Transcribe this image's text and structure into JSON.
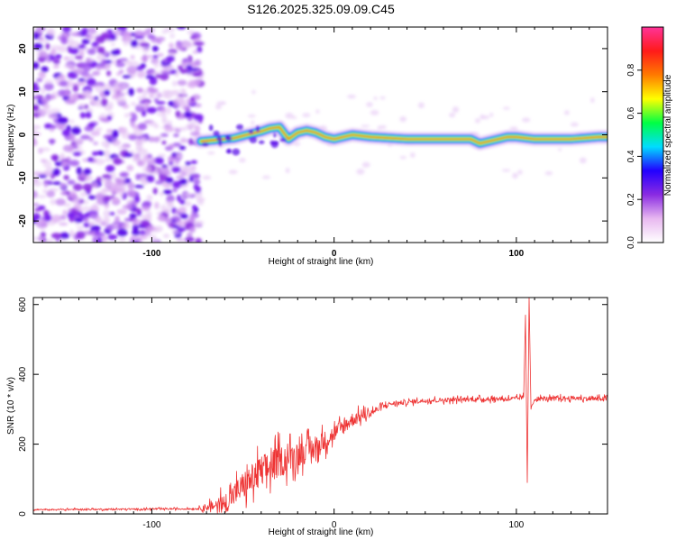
{
  "title": "S126.2025.325.09.09.C45",
  "colorbar": {
    "label": "Normalized spectral amplitude",
    "ticks": [
      "0.0",
      "0.2",
      "0.4",
      "0.6",
      "0.8"
    ],
    "tick_values": [
      0.0,
      0.2,
      0.4,
      0.6,
      0.8
    ],
    "range": [
      0,
      1
    ],
    "stops": [
      "#ffffff",
      "#e8b8f0",
      "#8a2be2",
      "#2200ff",
      "#00ddff",
      "#00ff44",
      "#ffff00",
      "#ff7a00",
      "#ff1a1a",
      "#ff3399"
    ]
  },
  "colors": {
    "snr_line": "#ee3333",
    "ridge_core": "#ff3322",
    "ridge_mid": "#22ff44",
    "ridge_outer": "#1144ff"
  },
  "chart_data": [
    {
      "type": "heatmap",
      "title": "S126.2025.325.09.09.C45",
      "xlabel": "Height of straight line (km)",
      "ylabel": "Frequency (Hz)",
      "xlim": [
        -165,
        150
      ],
      "ylim": [
        -25,
        25
      ],
      "xticks": [
        -100,
        0,
        100
      ],
      "xtick_labels": [
        "-100",
        "0",
        "100"
      ],
      "yticks": [
        20,
        10,
        0,
        -10,
        -20
      ],
      "ytick_labels": [
        "20",
        "10",
        "0",
        "-10",
        "-20"
      ],
      "description_values": {
        "noise_region_km": [
          -165,
          -73
        ],
        "ridge_frequency_hz": [
          [
            -73,
            -1.5
          ],
          [
            -65,
            -1.2
          ],
          [
            -55,
            -0.8
          ],
          [
            -48,
            0.0
          ],
          [
            -40,
            0.8
          ],
          [
            -35,
            1.5
          ],
          [
            -30,
            1.8
          ],
          [
            -25,
            -1.0
          ],
          [
            -20,
            0.5
          ],
          [
            -15,
            1.0
          ],
          [
            -10,
            0.5
          ],
          [
            -5,
            -0.5
          ],
          [
            0,
            -1.0
          ],
          [
            10,
            0.0
          ],
          [
            20,
            -0.5
          ],
          [
            40,
            -1.0
          ],
          [
            60,
            -1.0
          ],
          [
            75,
            -1.0
          ],
          [
            80,
            -2.0
          ],
          [
            85,
            -1.5
          ],
          [
            95,
            -0.5
          ],
          [
            100,
            -0.5
          ],
          [
            110,
            -1.0
          ],
          [
            130,
            -1.0
          ],
          [
            145,
            -0.5
          ],
          [
            150,
            -0.5
          ]
        ]
      }
    },
    {
      "type": "line",
      "xlabel": "Height of straight line (km)",
      "ylabel": "SNR (10 * v/v)",
      "xlim": [
        -165,
        150
      ],
      "ylim": [
        0,
        620
      ],
      "xticks": [
        -100,
        0,
        100
      ],
      "xtick_labels": [
        "-100",
        "0",
        "100"
      ],
      "yticks": [
        0,
        200,
        400,
        600
      ],
      "ytick_labels": [
        "0",
        "200",
        "400",
        "600"
      ],
      "series": [
        {
          "name": "SNR",
          "x": [
            -165,
            -140,
            -100,
            -75,
            -60,
            -50,
            -40,
            -30,
            -20,
            -10,
            0,
            10,
            20,
            30,
            50,
            70,
            90,
            100,
            104,
            105,
            106,
            107,
            108,
            110,
            120,
            130,
            140,
            150
          ],
          "values": [
            12,
            13,
            14,
            15,
            30,
            80,
            120,
            150,
            170,
            190,
            230,
            270,
            290,
            315,
            325,
            328,
            330,
            330,
            335,
            570,
            90,
            620,
            300,
            330,
            330,
            332,
            330,
            330
          ],
          "noise": [
            2,
            3,
            3,
            3,
            35,
            50,
            60,
            55,
            45,
            40,
            30,
            25,
            15,
            8,
            8,
            8,
            8,
            8,
            8,
            0,
            0,
            0,
            8,
            8,
            8,
            8,
            8,
            8
          ]
        }
      ]
    }
  ]
}
